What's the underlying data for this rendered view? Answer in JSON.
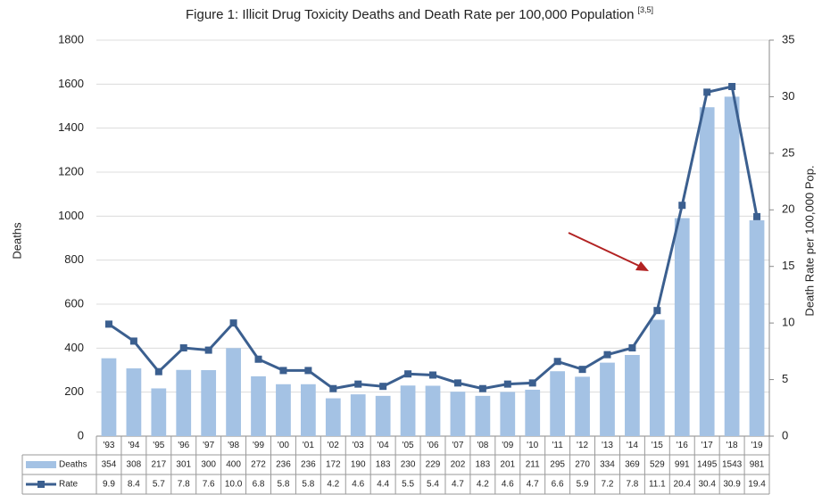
{
  "chart_data": {
    "type": "bar_line",
    "title": "Figure 1: Illicit Drug Toxicity Deaths and Death Rate per 100,000 Population",
    "title_note": "[3,5]",
    "y_label": "Deaths",
    "y2_label": "Death Rate per 100,000 Pop.",
    "categories": [
      "'93",
      "'94",
      "'95",
      "'96",
      "'97",
      "'98",
      "'99",
      "'00",
      "'01",
      "'02",
      "'03",
      "'04",
      "'05",
      "'06",
      "'07",
      "'08",
      "'09",
      "'10",
      "'11",
      "'12",
      "'13",
      "'14",
      "'15",
      "'16",
      "'17",
      "'18",
      "'19"
    ],
    "series": [
      {
        "name": "Deaths",
        "type": "bar",
        "color": "#a4c2e4",
        "values": [
          354,
          308,
          217,
          301,
          300,
          400,
          272,
          236,
          236,
          172,
          190,
          183,
          230,
          229,
          202,
          183,
          201,
          211,
          295,
          270,
          334,
          369,
          529,
          991,
          1495,
          1543,
          981
        ]
      },
      {
        "name": "Rate",
        "type": "line",
        "axis": "y2",
        "color": "#3b5f8f",
        "values": [
          9.9,
          8.4,
          5.7,
          7.8,
          7.6,
          10.0,
          6.8,
          5.8,
          5.8,
          4.2,
          4.6,
          4.4,
          5.5,
          5.4,
          4.7,
          4.2,
          4.6,
          4.7,
          6.6,
          5.9,
          7.2,
          7.8,
          11.1,
          20.4,
          30.4,
          30.9,
          19.4
        ],
        "value_labels": [
          "9.9",
          "8.4",
          "5.7",
          "7.8",
          "7.6",
          "10.0",
          "6.8",
          "5.8",
          "5.8",
          "4.2",
          "4.6",
          "4.4",
          "5.5",
          "5.4",
          "4.7",
          "4.2",
          "4.6",
          "4.7",
          "6.6",
          "5.9",
          "7.2",
          "7.8",
          "11.1",
          "20.4",
          "30.4",
          "30.9",
          "19.4"
        ]
      }
    ],
    "ylim": [
      0,
      1800
    ],
    "yticks": [
      0,
      200,
      400,
      600,
      800,
      1000,
      1200,
      1400,
      1600,
      1800
    ],
    "y2lim": [
      0,
      35
    ],
    "y2ticks": [
      0,
      5,
      10,
      15,
      20,
      25,
      30,
      35
    ],
    "grid": true
  }
}
